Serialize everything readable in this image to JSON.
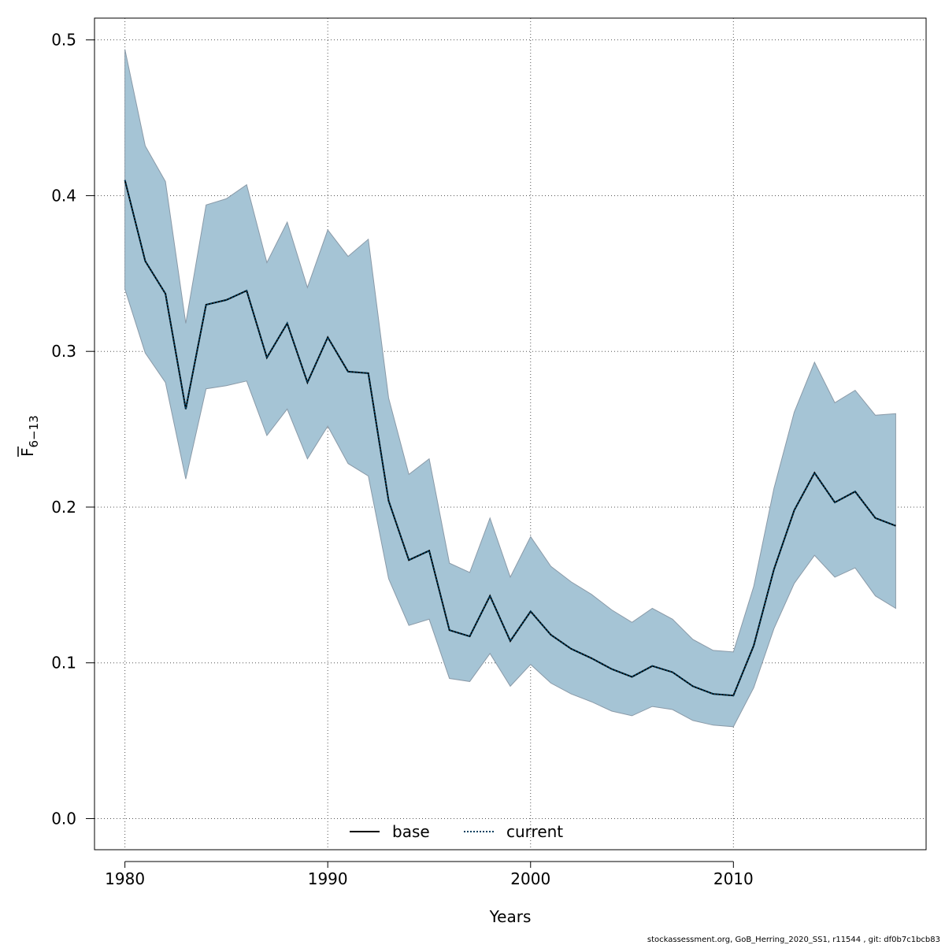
{
  "chart_data": {
    "type": "line",
    "title": "",
    "xlabel": "Years",
    "ylabel": {
      "base": "F",
      "subscript": "6−13"
    },
    "xlim": [
      1978.5,
      2019.5
    ],
    "ylim": [
      -0.02,
      0.514
    ],
    "xticks": [
      "1980",
      "1990",
      "2000",
      "2010"
    ],
    "yticks": [
      "0.0",
      "0.1",
      "0.2",
      "0.3",
      "0.4",
      "0.5"
    ],
    "grid": true,
    "legend_position": "bottom",
    "x": [
      1980,
      1981,
      1982,
      1983,
      1984,
      1985,
      1986,
      1987,
      1988,
      1989,
      1990,
      1991,
      1992,
      1993,
      1994,
      1995,
      1996,
      1997,
      1998,
      1999,
      2000,
      2001,
      2002,
      2003,
      2004,
      2005,
      2006,
      2007,
      2008,
      2009,
      2010,
      2011,
      2012,
      2013,
      2014,
      2015,
      2016,
      2017,
      2018
    ],
    "series": [
      {
        "name": "base",
        "style": "solid",
        "color": "#000000",
        "values": [
          0.41,
          0.358,
          0.337,
          0.263,
          0.33,
          0.333,
          0.339,
          0.296,
          0.318,
          0.28,
          0.309,
          0.287,
          0.286,
          0.204,
          0.166,
          0.172,
          0.121,
          0.117,
          0.143,
          0.114,
          0.133,
          0.118,
          0.109,
          0.103,
          0.096,
          0.091,
          0.098,
          0.094,
          0.085,
          0.08,
          0.079,
          0.111,
          0.16,
          0.198,
          0.222,
          0.203,
          0.21,
          0.193,
          0.188
        ]
      },
      {
        "name": "current",
        "style": "dotted",
        "color": "#004060",
        "values": [
          0.41,
          0.358,
          0.337,
          0.263,
          0.33,
          0.333,
          0.339,
          0.296,
          0.318,
          0.28,
          0.309,
          0.287,
          0.286,
          0.204,
          0.166,
          0.172,
          0.121,
          0.117,
          0.143,
          0.114,
          0.133,
          0.118,
          0.109,
          0.103,
          0.096,
          0.091,
          0.098,
          0.094,
          0.085,
          0.08,
          0.079,
          0.111,
          0.16,
          0.198,
          0.222,
          0.203,
          0.21,
          0.193,
          0.188
        ]
      }
    ],
    "confidence_band": {
      "series": "current",
      "fill": "#a5c4d5",
      "upper": [
        0.494,
        0.432,
        0.409,
        0.318,
        0.394,
        0.398,
        0.407,
        0.357,
        0.383,
        0.341,
        0.378,
        0.361,
        0.372,
        0.27,
        0.221,
        0.231,
        0.164,
        0.158,
        0.193,
        0.155,
        0.181,
        0.162,
        0.152,
        0.144,
        0.134,
        0.126,
        0.135,
        0.128,
        0.115,
        0.108,
        0.107,
        0.149,
        0.212,
        0.261,
        0.293,
        0.267,
        0.275,
        0.259,
        0.26
      ],
      "lower": [
        0.34,
        0.299,
        0.28,
        0.218,
        0.276,
        0.278,
        0.281,
        0.246,
        0.263,
        0.231,
        0.252,
        0.228,
        0.22,
        0.154,
        0.124,
        0.128,
        0.09,
        0.088,
        0.106,
        0.085,
        0.099,
        0.087,
        0.08,
        0.075,
        0.069,
        0.066,
        0.072,
        0.07,
        0.063,
        0.06,
        0.059,
        0.084,
        0.122,
        0.151,
        0.169,
        0.155,
        0.161,
        0.143,
        0.135
      ]
    }
  },
  "footer": {
    "text": "stockassessment.org, GoB_Herring_2020_SS1, r11544 , git: df0b7c1bcb83"
  }
}
